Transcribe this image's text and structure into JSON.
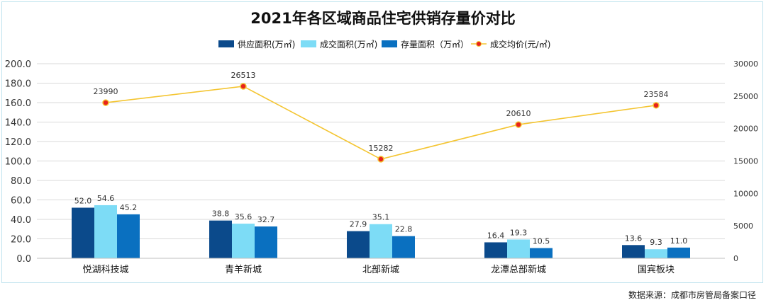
{
  "chart_data": {
    "type": "bar",
    "title": "2021年各区域商品住宅供销存量价对比",
    "categories": [
      "悦湖科技城",
      "青羊新城",
      "北部新城",
      "龙潭总部新城",
      "国宾板块"
    ],
    "series": [
      {
        "name": "供应面积(万㎡)",
        "kind": "bar",
        "axis": "left",
        "color": "#0b4a8b",
        "values": [
          52.0,
          38.8,
          27.9,
          16.4,
          13.6
        ]
      },
      {
        "name": "成交面积(万㎡)",
        "kind": "bar",
        "axis": "left",
        "color": "#7ddcf6",
        "values": [
          54.6,
          35.6,
          35.1,
          19.3,
          9.3
        ]
      },
      {
        "name": "存量面积（万㎡）",
        "kind": "bar",
        "axis": "left",
        "color": "#0a70c0",
        "values": [
          45.2,
          32.7,
          22.8,
          10.5,
          11.0
        ]
      },
      {
        "name": "成交均价(元/㎡)",
        "kind": "line",
        "axis": "right",
        "color": "#f4c531",
        "marker": "#e8231c",
        "values": [
          23990,
          26513,
          15282,
          20610,
          23584
        ]
      }
    ],
    "y_left": {
      "range": [
        0,
        200
      ],
      "ticks": [
        "0.0",
        "20.0",
        "40.0",
        "60.0",
        "80.0",
        "100.0",
        "120.0",
        "140.0",
        "160.0",
        "180.0",
        "200.0"
      ]
    },
    "y_right": {
      "range": [
        0,
        30000
      ],
      "ticks": [
        "0",
        "5000",
        "10000",
        "15000",
        "20000",
        "25000",
        "30000"
      ]
    },
    "grid": true,
    "legend": "top-center",
    "source_note": "数据来源：成都市房管局备案口径"
  }
}
